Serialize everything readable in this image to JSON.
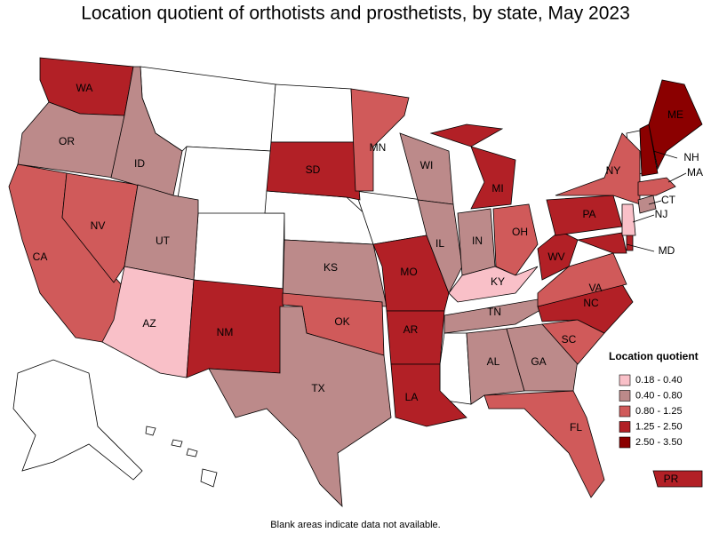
{
  "title": "Location quotient of orthotists and prosthetists, by state, May 2023",
  "states": [
    {
      "label": "WA",
      "color": "#b22026"
    },
    {
      "label": "OR",
      "color": "#bc8a8a"
    },
    {
      "label": "CA",
      "color": "#d05a5a"
    },
    {
      "label": "NV",
      "color": "#d05a5a"
    },
    {
      "label": "ID",
      "color": "#bc8a8a"
    },
    {
      "label": "UT",
      "color": "#bc8a8a"
    },
    {
      "label": "AZ",
      "color": "#f9c0c8"
    },
    {
      "label": "NM",
      "color": "#b22026"
    },
    {
      "label": "SD",
      "color": "#b22026"
    },
    {
      "label": "KS",
      "color": "#bc8a8a"
    },
    {
      "label": "OK",
      "color": "#d05a5a"
    },
    {
      "label": "TX",
      "color": "#bc8a8a"
    },
    {
      "label": "MN",
      "color": "#d05a5a"
    },
    {
      "label": "MO",
      "color": "#b22026"
    },
    {
      "label": "AR",
      "color": "#b22026"
    },
    {
      "label": "LA",
      "color": "#b22026"
    },
    {
      "label": "WI",
      "color": "#bc8a8a"
    },
    {
      "label": "IL",
      "color": "#bc8a8a"
    },
    {
      "label": "MI",
      "color": "#b22026"
    },
    {
      "label": "IN",
      "color": "#bc8a8a"
    },
    {
      "label": "OH",
      "color": "#d05a5a"
    },
    {
      "label": "KY",
      "color": "#f9c0c8"
    },
    {
      "label": "TN",
      "color": "#bc8a8a"
    },
    {
      "label": "AL",
      "color": "#bc8a8a"
    },
    {
      "label": "GA",
      "color": "#bc8a8a"
    },
    {
      "label": "FL",
      "color": "#d05a5a"
    },
    {
      "label": "SC",
      "color": "#d05a5a"
    },
    {
      "label": "NC",
      "color": "#b22026"
    },
    {
      "label": "VA",
      "color": "#d05a5a"
    },
    {
      "label": "WV",
      "color": "#b22026"
    },
    {
      "label": "PA",
      "color": "#b22026"
    },
    {
      "label": "NY",
      "color": "#d05a5a"
    },
    {
      "label": "MD",
      "color": "#b22026"
    },
    {
      "label": "NJ",
      "color": "#f9c0c8"
    },
    {
      "label": "CT",
      "color": "#bc8a8a"
    },
    {
      "label": "MA",
      "color": "#d05a5a"
    },
    {
      "label": "NH",
      "color": "#8b0000"
    },
    {
      "label": "ME",
      "color": "#8b0000"
    },
    {
      "label": "PR",
      "color": "#b22026"
    }
  ],
  "legend": {
    "title": "Location quotient",
    "entries": [
      {
        "label": "0.18 - 0.40",
        "color": "#f9c0c8"
      },
      {
        "label": "0.40 - 0.80",
        "color": "#bc8a8a"
      },
      {
        "label": "0.80 - 1.25",
        "color": "#d05a5a"
      },
      {
        "label": "1.25 - 2.50",
        "color": "#b22026"
      },
      {
        "label": "2.50 - 3.50",
        "color": "#8b0000"
      }
    ]
  },
  "note": "Blank areas indicate data not available."
}
